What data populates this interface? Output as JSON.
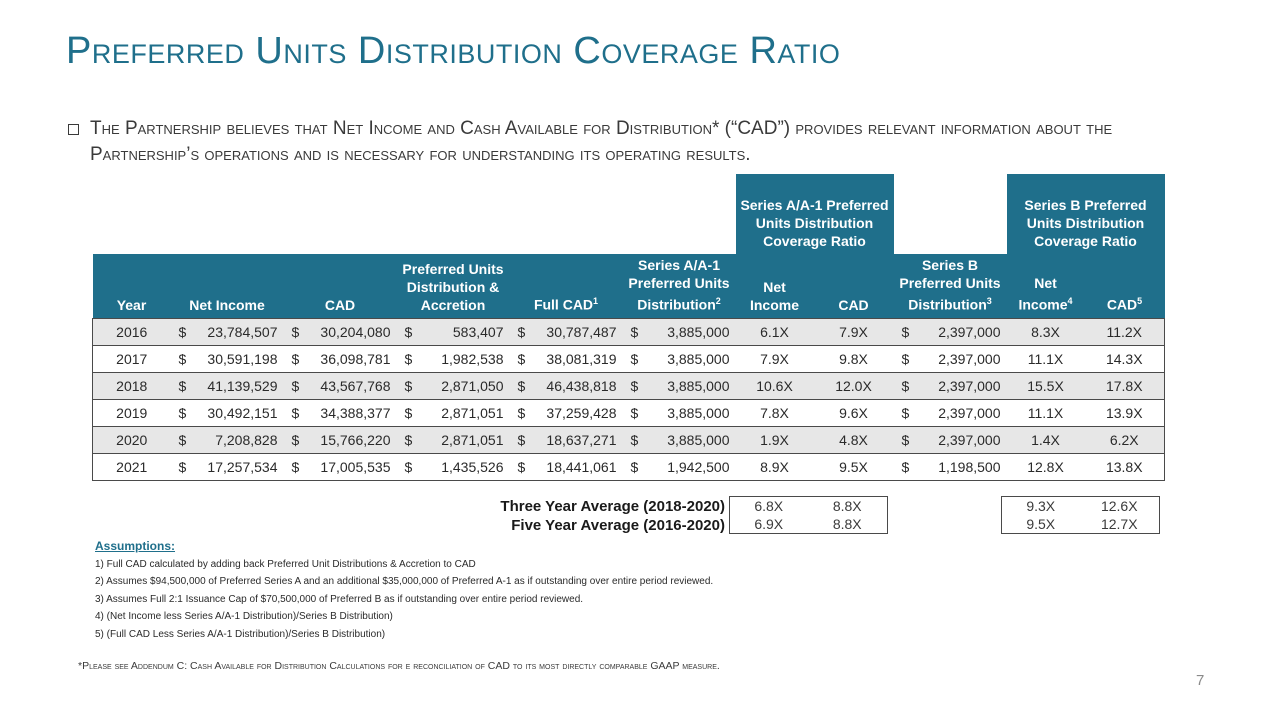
{
  "title": "Preferred Units Distribution Coverage Ratio",
  "bullet": "The Partnership believes that Net Income and Cash Available for Distribution* (“CAD”) provides relevant information about the Partnership’s operations and is necessary for understanding its operating results.",
  "group_headers": {
    "series_a": "Series A/A-1 Preferred Units Distribution Coverage Ratio",
    "series_b": "Series B Preferred Units Distribution Coverage Ratio"
  },
  "columns": {
    "year": "Year",
    "net_income": "Net Income",
    "cad": "CAD",
    "dist_accretion_1": "Preferred Units",
    "dist_accretion_2": "Distribution &",
    "dist_accretion_3": "Accretion",
    "full_cad": "Full CAD",
    "full_cad_sup": "1",
    "sa_dist_1": "Series A/A-1",
    "sa_dist_2": "Preferred Units",
    "sa_dist_3": "Distribution",
    "sa_dist_sup": "2",
    "sa_ni_1": "Net",
    "sa_ni_2": "Income",
    "sa_cad": "CAD",
    "sb_dist_1": "Series B",
    "sb_dist_2": "Preferred Units",
    "sb_dist_3": "Distribution",
    "sb_dist_sup": "3",
    "sb_ni_1": "Net",
    "sb_ni_2": "Income",
    "sb_ni_sup": "4",
    "sb_cad": "CAD",
    "sb_cad_sup": "5"
  },
  "currency": "$",
  "rows": [
    {
      "year": "2016",
      "net_income": "23,784,507",
      "cad": "30,204,080",
      "dist": "583,407",
      "full_cad": "30,787,487",
      "sa_dist": "3,885,000",
      "sa_ni": "6.1X",
      "sa_cad": "7.9X",
      "sb_dist": "2,397,000",
      "sb_ni": "8.3X",
      "sb_cad": "11.2X"
    },
    {
      "year": "2017",
      "net_income": "30,591,198",
      "cad": "36,098,781",
      "dist": "1,982,538",
      "full_cad": "38,081,319",
      "sa_dist": "3,885,000",
      "sa_ni": "7.9X",
      "sa_cad": "9.8X",
      "sb_dist": "2,397,000",
      "sb_ni": "11.1X",
      "sb_cad": "14.3X"
    },
    {
      "year": "2018",
      "net_income": "41,139,529",
      "cad": "43,567,768",
      "dist": "2,871,050",
      "full_cad": "46,438,818",
      "sa_dist": "3,885,000",
      "sa_ni": "10.6X",
      "sa_cad": "12.0X",
      "sb_dist": "2,397,000",
      "sb_ni": "15.5X",
      "sb_cad": "17.8X"
    },
    {
      "year": "2019",
      "net_income": "30,492,151",
      "cad": "34,388,377",
      "dist": "2,871,051",
      "full_cad": "37,259,428",
      "sa_dist": "3,885,000",
      "sa_ni": "7.8X",
      "sa_cad": "9.6X",
      "sb_dist": "2,397,000",
      "sb_ni": "11.1X",
      "sb_cad": "13.9X"
    },
    {
      "year": "2020",
      "net_income": "7,208,828",
      "cad": "15,766,220",
      "dist": "2,871,051",
      "full_cad": "18,637,271",
      "sa_dist": "3,885,000",
      "sa_ni": "1.9X",
      "sa_cad": "4.8X",
      "sb_dist": "2,397,000",
      "sb_ni": "1.4X",
      "sb_cad": "6.2X"
    },
    {
      "year": "2021",
      "net_income": "17,257,534",
      "cad": "17,005,535",
      "dist": "1,435,526",
      "full_cad": "18,441,061",
      "sa_dist": "1,942,500",
      "sa_ni": "8.9X",
      "sa_cad": "9.5X",
      "sb_dist": "1,198,500",
      "sb_ni": "12.8X",
      "sb_cad": "13.8X"
    }
  ],
  "averages": [
    {
      "label": "Three Year Average (2018-2020)",
      "sa_ni": "6.8X",
      "sa_cad": "8.8X",
      "sb_ni": "9.3X",
      "sb_cad": "12.6X"
    },
    {
      "label": "Five Year Average (2016-2020)",
      "sa_ni": "6.9X",
      "sa_cad": "8.8X",
      "sb_ni": "9.5X",
      "sb_cad": "12.7X"
    }
  ],
  "assumptions": {
    "heading": "Assumptions:",
    "items": [
      "1) Full CAD calculated by adding back Preferred Unit Distributions & Accretion to CAD",
      "2) Assumes  $94,500,000 of Preferred Series A and an additional $35,000,000 of Preferred A-1 as if outstanding over entire period reviewed.",
      "3) Assumes Full 2:1 Issuance Cap of $70,500,000 of Preferred B as if outstanding over entire period reviewed.",
      "4) (Net Income less Series A/A-1 Distribution)/Series B Distribution)",
      "5) (Full CAD Less Series A/A-1 Distribution)/Series B Distribution)"
    ]
  },
  "footnote": "*Please see Addendum C: Cash Available for Distribution Calculations for e reconciliation of CAD to its most directly comparable GAAP measure.",
  "page_number": "7"
}
